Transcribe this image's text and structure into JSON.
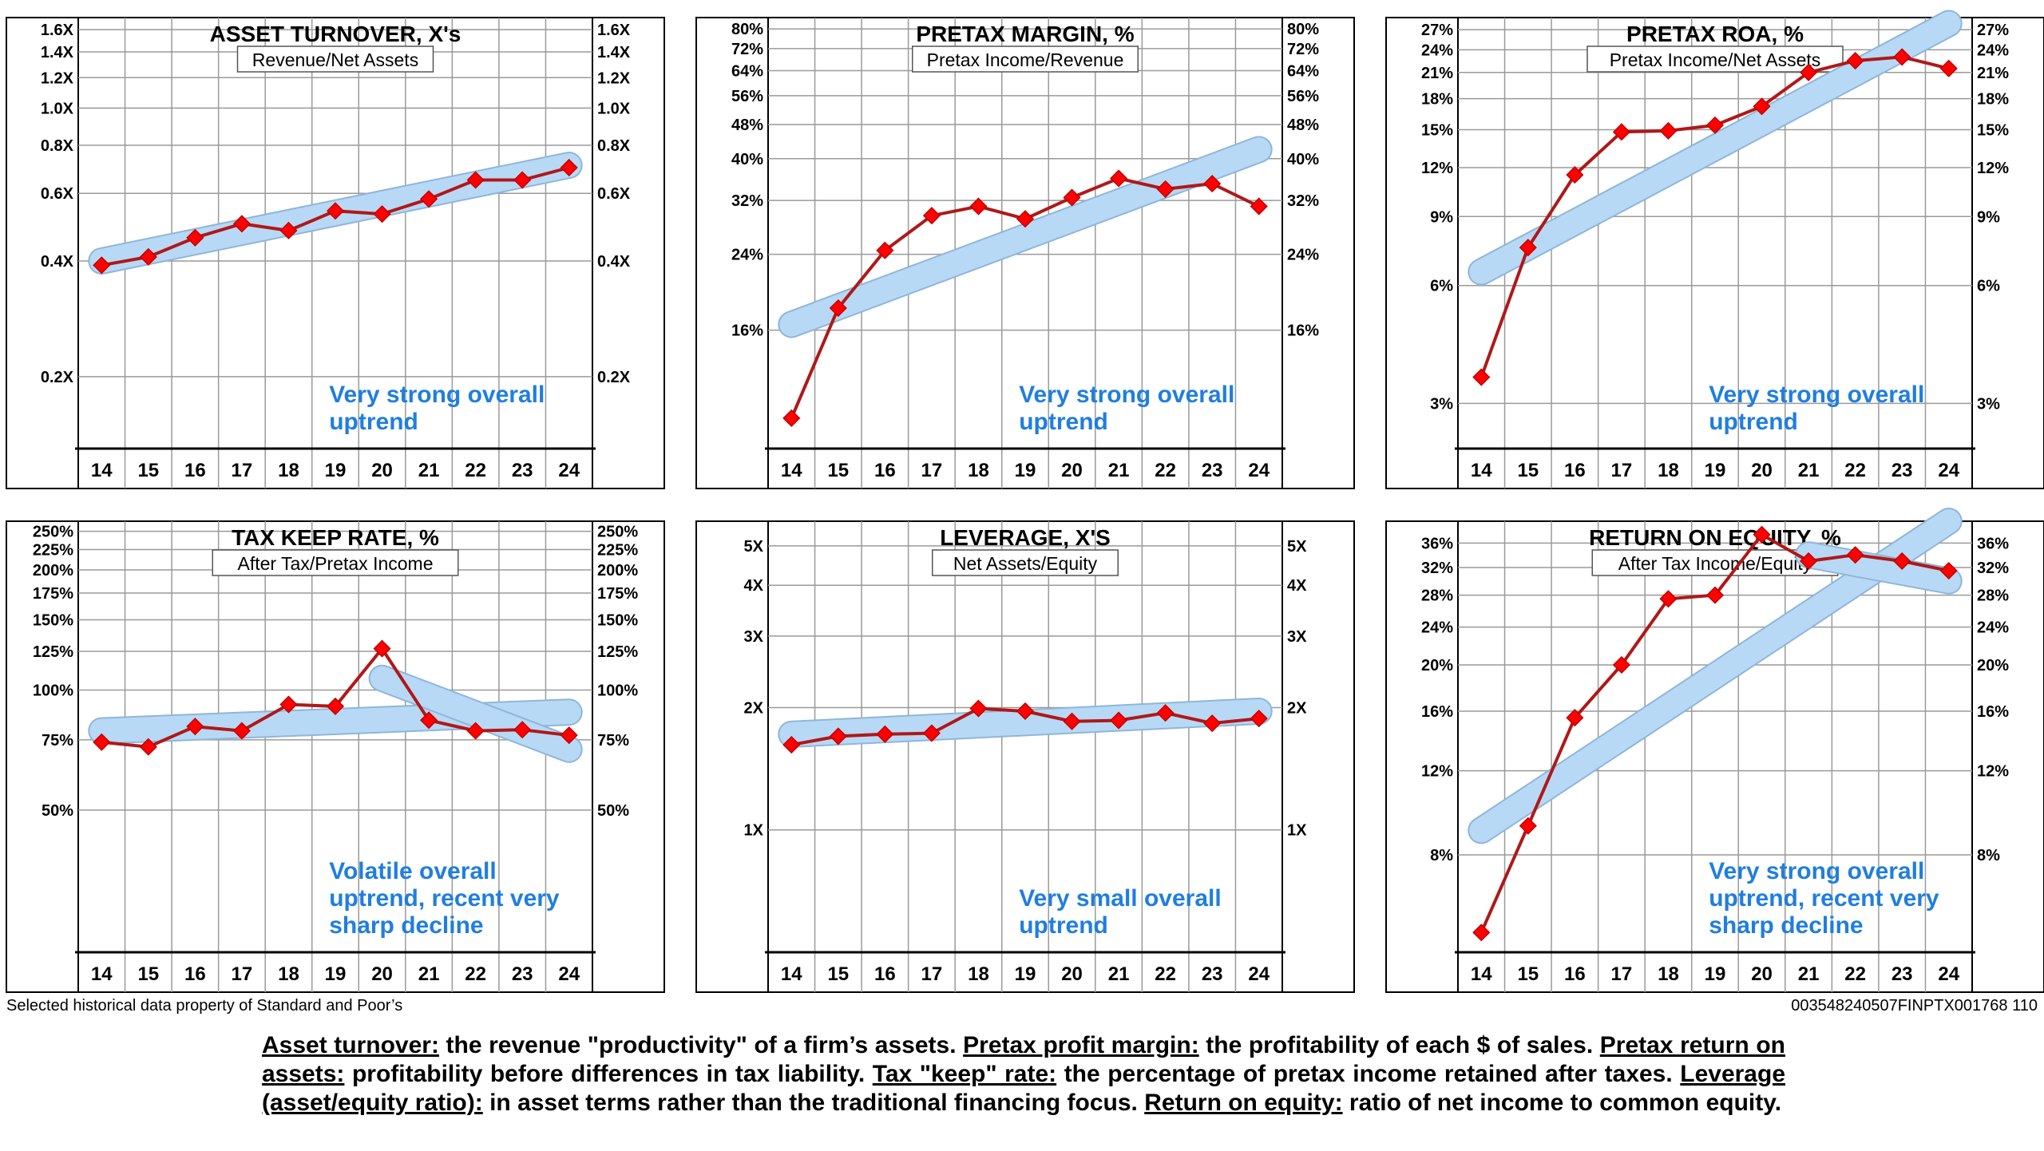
{
  "chart_data": [
    {
      "type": "line",
      "title": "ASSET TURNOVER, X's",
      "subtitle": "Revenue/Net Assets",
      "categories": [
        "14",
        "15",
        "16",
        "17",
        "18",
        "19",
        "20",
        "21",
        "22",
        "23",
        "24"
      ],
      "series": [
        {
          "name": "Asset turnover",
          "values": [
            0.39,
            0.41,
            0.46,
            0.5,
            0.48,
            0.54,
            0.53,
            0.58,
            0.65,
            0.65,
            0.7
          ]
        }
      ],
      "scale": "log",
      "ylim": [
        0.13,
        1.72
      ],
      "yticks": [
        {
          "v": 1.6,
          "label": "1.6X"
        },
        {
          "v": 1.4,
          "label": "1.4X"
        },
        {
          "v": 1.2,
          "label": "1.2X"
        },
        {
          "v": 1.0,
          "label": "1.0X"
        },
        {
          "v": 0.8,
          "label": "0.8X"
        },
        {
          "v": 0.6,
          "label": "0.6X"
        },
        {
          "v": 0.4,
          "label": "0.4X"
        },
        {
          "v": 0.2,
          "label": "0.2X"
        }
      ],
      "trends": [
        {
          "from": [
            0,
            0.4
          ],
          "to": [
            10,
            0.71
          ]
        }
      ],
      "annotation": [
        "Very strong overall",
        "uptrend"
      ]
    },
    {
      "type": "line",
      "title": "PRETAX MARGIN, %",
      "subtitle": "Pretax Income/Revenue",
      "categories": [
        "14",
        "15",
        "16",
        "17",
        "18",
        "19",
        "20",
        "21",
        "22",
        "23",
        "24"
      ],
      "series": [
        {
          "name": "Pretax margin",
          "values": [
            10,
            18,
            24.5,
            29.5,
            31,
            29,
            32.5,
            36,
            34,
            35,
            31
          ]
        }
      ],
      "scale": "log",
      "ylim": [
        8.5,
        85
      ],
      "yticks": [
        {
          "v": 80,
          "label": "80%"
        },
        {
          "v": 72,
          "label": "72%"
        },
        {
          "v": 64,
          "label": "64%"
        },
        {
          "v": 56,
          "label": "56%"
        },
        {
          "v": 48,
          "label": "48%"
        },
        {
          "v": 40,
          "label": "40%"
        },
        {
          "v": 32,
          "label": "32%"
        },
        {
          "v": 24,
          "label": "24%"
        },
        {
          "v": 16,
          "label": "16%"
        }
      ],
      "trends": [
        {
          "from": [
            0,
            16.5
          ],
          "to": [
            10,
            42
          ]
        }
      ],
      "annotation": [
        "Very strong overall",
        "uptrend"
      ]
    },
    {
      "type": "line",
      "title": "PRETAX ROA, %",
      "subtitle": "Pretax Income/Net Assets",
      "categories": [
        "14",
        "15",
        "16",
        "17",
        "18",
        "19",
        "20",
        "21",
        "22",
        "23",
        "24"
      ],
      "series": [
        {
          "name": "Pretax ROA",
          "values": [
            3.5,
            7.5,
            11.5,
            14.8,
            14.9,
            15.4,
            17.2,
            21,
            22.5,
            23,
            21.5
          ]
        }
      ],
      "scale": "log",
      "ylim": [
        2.3,
        29
      ],
      "yticks": [
        {
          "v": 27,
          "label": "27%"
        },
        {
          "v": 24,
          "label": "24%"
        },
        {
          "v": 21,
          "label": "21%"
        },
        {
          "v": 18,
          "label": "18%"
        },
        {
          "v": 15,
          "label": "15%"
        },
        {
          "v": 12,
          "label": "12%"
        },
        {
          "v": 9,
          "label": "9%"
        },
        {
          "v": 6,
          "label": "6%"
        },
        {
          "v": 3,
          "label": "3%"
        }
      ],
      "trends": [
        {
          "from": [
            0,
            6.5
          ],
          "to": [
            10,
            28
          ]
        }
      ],
      "annotation": [
        "Very strong overall",
        "uptrend"
      ]
    },
    {
      "type": "line",
      "title": "TAX KEEP RATE, %",
      "subtitle": "After Tax/Pretax Income",
      "categories": [
        "14",
        "15",
        "16",
        "17",
        "18",
        "19",
        "20",
        "21",
        "22",
        "23",
        "24"
      ],
      "series": [
        {
          "name": "Tax keep rate",
          "values": [
            74,
            72,
            81,
            79,
            92,
            91,
            127,
            84,
            79,
            79.5,
            77
          ]
        }
      ],
      "scale": "log",
      "ylim": [
        22,
        265
      ],
      "yticks": [
        {
          "v": 250,
          "label": "250%"
        },
        {
          "v": 225,
          "label": "225%"
        },
        {
          "v": 200,
          "label": "200%"
        },
        {
          "v": 175,
          "label": "175%"
        },
        {
          "v": 150,
          "label": "150%"
        },
        {
          "v": 125,
          "label": "125%"
        },
        {
          "v": 100,
          "label": "100%"
        },
        {
          "v": 75,
          "label": "75%"
        },
        {
          "v": 50,
          "label": "50%"
        }
      ],
      "trends": [
        {
          "from": [
            0,
            79
          ],
          "to": [
            10,
            88
          ]
        },
        {
          "from": [
            6,
            107
          ],
          "to": [
            10,
            71
          ]
        }
      ],
      "annotation": [
        "Volatile overall",
        "uptrend, recent very",
        "sharp decline"
      ]
    },
    {
      "type": "line",
      "title": "LEVERAGE, X'S",
      "subtitle": "Net Assets/Equity",
      "categories": [
        "14",
        "15",
        "16",
        "17",
        "18",
        "19",
        "20",
        "21",
        "22",
        "23",
        "24"
      ],
      "series": [
        {
          "name": "Leverage",
          "values": [
            1.62,
            1.7,
            1.72,
            1.73,
            1.99,
            1.96,
            1.85,
            1.86,
            1.94,
            1.83,
            1.88
          ]
        }
      ],
      "scale": "log",
      "ylim": [
        0.5,
        5.75
      ],
      "yticks": [
        {
          "v": 5,
          "label": "5X"
        },
        {
          "v": 4,
          "label": "4X"
        },
        {
          "v": 3,
          "label": "3X"
        },
        {
          "v": 2,
          "label": "2X"
        },
        {
          "v": 1,
          "label": "1X"
        }
      ],
      "trends": [
        {
          "from": [
            0,
            1.72
          ],
          "to": [
            10,
            1.96
          ]
        }
      ],
      "annotation": [
        "Very small overall",
        "uptrend"
      ]
    },
    {
      "type": "line",
      "title": "RETURN ON EQUITY, %",
      "subtitle": "After Tax Income/Equity",
      "categories": [
        "14",
        "15",
        "16",
        "17",
        "18",
        "19",
        "20",
        "21",
        "22",
        "23",
        "24"
      ],
      "series": [
        {
          "name": "Return on equity",
          "values": [
            5.5,
            9.2,
            15.5,
            20,
            27.5,
            28,
            37.5,
            33,
            34,
            33,
            31.5
          ]
        }
      ],
      "scale": "log",
      "ylim": [
        5.0,
        40
      ],
      "yticks": [
        {
          "v": 36,
          "label": "36%"
        },
        {
          "v": 32,
          "label": "32%"
        },
        {
          "v": 28,
          "label": "28%"
        },
        {
          "v": 24,
          "label": "24%"
        },
        {
          "v": 20,
          "label": "20%"
        },
        {
          "v": 16,
          "label": "16%"
        },
        {
          "v": 12,
          "label": "12%"
        },
        {
          "v": 8,
          "label": "8%"
        }
      ],
      "trends": [
        {
          "from": [
            0,
            9
          ],
          "to": [
            10,
            40
          ]
        },
        {
          "from": [
            7,
            34
          ],
          "to": [
            10,
            30
          ]
        }
      ],
      "annotation": [
        "Very strong overall",
        "uptrend, recent very",
        "sharp decline"
      ]
    }
  ],
  "colors": {
    "line": "#b01818",
    "marker": "#ff0000",
    "trend_fill": "#b7d9f6",
    "trend_edge": "#8fb6d8",
    "annotation": "#1f7ee0",
    "grid": "#9a9a9a"
  },
  "footer": {
    "left": "Selected historical data property of Standard and Poor’s",
    "right": "003548240507FINPTX001768 110"
  },
  "glossary": [
    {
      "term": "Asset turnover:",
      "text": " the revenue \"productivity\" of a firm’s assets. "
    },
    {
      "term": "Pretax profit margin:",
      "text": " the profitability of each $ of sales. "
    },
    {
      "term": "Pretax return on assets:",
      "text": " profitability before differences in tax liability. "
    },
    {
      "term": "Tax \"keep\" rate:",
      "text": " the percentage of pretax income retained after taxes. "
    },
    {
      "term": "Leverage (asset/equity ratio):",
      "text": " in asset terms rather than the traditional financing focus. "
    },
    {
      "term": "Return on equity:",
      "text": " ratio of net income to common equity."
    }
  ]
}
